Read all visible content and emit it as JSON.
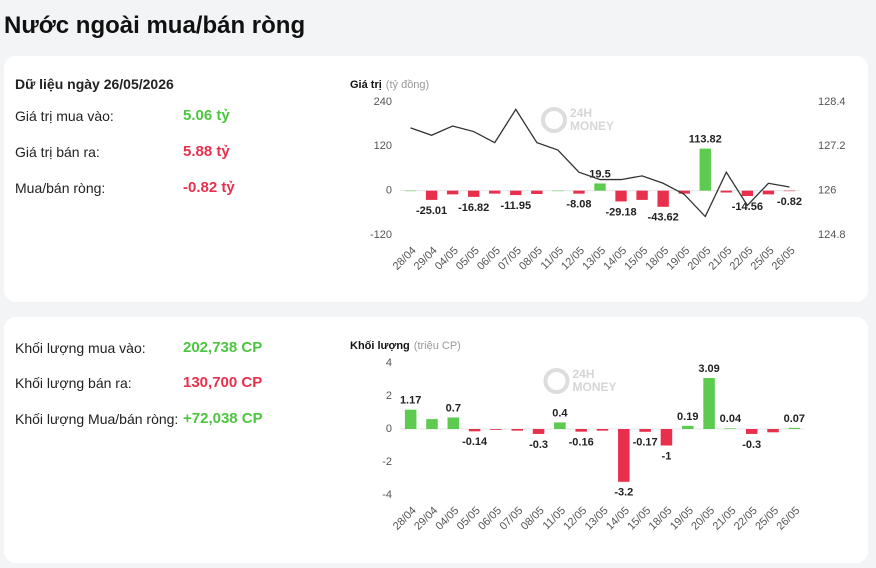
{
  "title": "Nước ngoài mua/bán ròng",
  "watermark": [
    "24H",
    "MONEY"
  ],
  "value_summary": {
    "date_label": "Dữ liệu ngày 26/05/2026",
    "rows": [
      {
        "label": "Giá trị mua vào:",
        "value": "5.06 tỷ"
      },
      {
        "label": "Giá trị bán ra:",
        "value": "5.88 tỷ"
      },
      {
        "label": "Mua/bán ròng:",
        "value": "-0.82 tỷ"
      }
    ]
  },
  "volume_summary": {
    "rows": [
      {
        "label": "Khối lượng mua vào:",
        "value": "202,738 CP"
      },
      {
        "label": "Khối lượng bán ra:",
        "value": "130,700 CP"
      },
      {
        "label": "Khối lượng Mua/bán ròng:",
        "value": "+72,038 CP"
      }
    ]
  },
  "chart_data": [
    {
      "type": "bar",
      "title": "Giá trị",
      "unit": "(tỷ đồng)",
      "categories": [
        "28/04",
        "29/04",
        "04/05",
        "05/05",
        "06/05",
        "07/05",
        "08/05",
        "11/05",
        "12/05",
        "13/05",
        "14/05",
        "15/05",
        "18/05",
        "19/05",
        "20/05",
        "21/05",
        "22/05",
        "25/05",
        "26/05"
      ],
      "ylim": [
        -120,
        240
      ],
      "yticks": [
        -120,
        0,
        120,
        240
      ],
      "y2lim": [
        124.8,
        128.4
      ],
      "y2ticks": [
        124.8,
        126,
        127.2,
        128.4
      ],
      "series": [
        {
          "type": "bar",
          "color_up": "#5ccb4f",
          "color_down": "#e8304d",
          "values": [
            0,
            -25.01,
            -10,
            -16.82,
            -8,
            -11.95,
            -9,
            0,
            -8.08,
            19.5,
            -29.18,
            -25,
            -43.62,
            -8,
            113.82,
            -5,
            -14.56,
            -10,
            -0.82
          ],
          "value_labels": [
            null,
            "-25.01",
            null,
            "-16.82",
            null,
            "-11.95",
            null,
            null,
            "-8.08",
            "19.5",
            "-29.18",
            null,
            "-43.62",
            null,
            "113.82",
            null,
            "-14.56",
            null,
            "-0.82"
          ]
        },
        {
          "type": "line",
          "axis": "y2",
          "color": "#333333",
          "values": [
            127.7,
            127.5,
            127.75,
            127.6,
            127.3,
            128.2,
            127.3,
            127.1,
            126.5,
            126.3,
            126.3,
            126.4,
            126.2,
            125.9,
            125.3,
            126.5,
            125.6,
            126.2,
            126.1
          ]
        }
      ]
    },
    {
      "type": "bar",
      "title": "Khối lượng",
      "unit": "(triệu CP)",
      "categories": [
        "28/04",
        "29/04",
        "04/05",
        "05/05",
        "06/05",
        "07/05",
        "08/05",
        "11/05",
        "12/05",
        "13/05",
        "14/05",
        "15/05",
        "18/05",
        "19/05",
        "20/05",
        "21/05",
        "22/05",
        "25/05",
        "26/05"
      ],
      "ylim": [
        -4,
        4
      ],
      "yticks": [
        -4,
        -2,
        0,
        2,
        4
      ],
      "series": [
        {
          "type": "bar",
          "color_up": "#5ccb4f",
          "color_down": "#e8304d",
          "values": [
            1.17,
            0.6,
            0.7,
            -0.14,
            -0.05,
            -0.1,
            -0.3,
            0.4,
            -0.16,
            -0.1,
            -3.2,
            -0.17,
            -1,
            0.19,
            3.09,
            0.04,
            -0.3,
            -0.2,
            0.07
          ],
          "value_labels": [
            "1.17",
            null,
            "0.7",
            "-0.14",
            null,
            null,
            "-0.3",
            "0.4",
            "-0.16",
            null,
            "-3.2",
            "-0.17",
            "-1",
            "0.19",
            "3.09",
            "0.04",
            "-0.3",
            null,
            "0.07"
          ]
        }
      ]
    }
  ]
}
